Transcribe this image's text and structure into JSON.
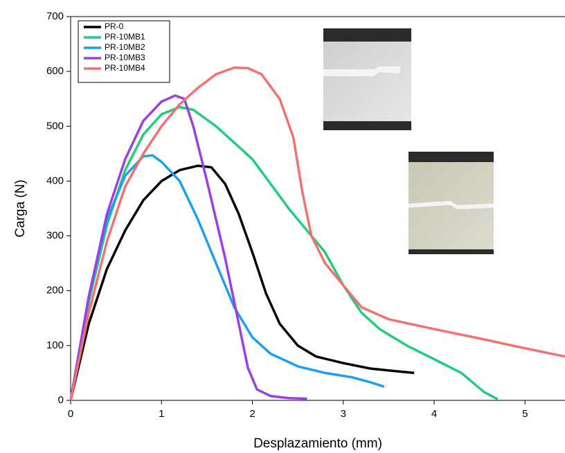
{
  "chart_data": {
    "type": "line",
    "x_label": "Desplazamiento (mm)",
    "y_label": "Carga (N)",
    "xlim": [
      0,
      5.44
    ],
    "ylim": [
      0,
      700
    ],
    "xticks": [
      0,
      1,
      2,
      3,
      4,
      5
    ],
    "yticks": [
      0,
      100,
      200,
      300,
      400,
      500,
      600,
      700
    ],
    "legend": "upper left",
    "series": [
      {
        "name": "PR-0",
        "color": "#000000",
        "x": [
          0,
          0.2,
          0.4,
          0.6,
          0.8,
          1.0,
          1.2,
          1.4,
          1.55,
          1.7,
          1.85,
          2.0,
          2.15,
          2.3,
          2.5,
          2.7,
          3.0,
          3.3,
          3.6,
          3.78
        ],
        "values": [
          0,
          140,
          240,
          310,
          365,
          400,
          420,
          428,
          425,
          395,
          340,
          270,
          195,
          140,
          100,
          80,
          68,
          58,
          53,
          50
        ]
      },
      {
        "name": "PR-10MB1",
        "color": "#22cc7a",
        "x": [
          0,
          0.2,
          0.4,
          0.6,
          0.8,
          1.0,
          1.2,
          1.35,
          1.6,
          1.8,
          2.0,
          2.2,
          2.4,
          2.6,
          2.8,
          3.0,
          3.2,
          3.4,
          3.7,
          4.0,
          4.3,
          4.55,
          4.7
        ],
        "values": [
          0,
          180,
          320,
          420,
          485,
          522,
          535,
          530,
          500,
          470,
          440,
          395,
          350,
          310,
          270,
          210,
          160,
          130,
          100,
          75,
          50,
          15,
          2
        ]
      },
      {
        "name": "PR-10MB2",
        "color": "#1c9ff0",
        "x": [
          0,
          0.2,
          0.4,
          0.6,
          0.8,
          0.9,
          1.0,
          1.2,
          1.4,
          1.6,
          1.8,
          2.0,
          2.2,
          2.5,
          2.8,
          3.1,
          3.3,
          3.45
        ],
        "values": [
          0,
          190,
          330,
          410,
          445,
          447,
          435,
          400,
          330,
          250,
          170,
          115,
          85,
          62,
          50,
          42,
          33,
          25
        ]
      },
      {
        "name": "PR-10MB3",
        "color": "#9a3fe2",
        "x": [
          0,
          0.2,
          0.4,
          0.6,
          0.8,
          1.0,
          1.15,
          1.25,
          1.35,
          1.5,
          1.7,
          1.85,
          1.95,
          2.05,
          2.2,
          2.4,
          2.6
        ],
        "values": [
          0,
          190,
          340,
          440,
          510,
          545,
          556,
          550,
          500,
          400,
          260,
          140,
          60,
          20,
          8,
          4,
          3
        ]
      },
      {
        "name": "PR-10MB4",
        "color": "#f2716e",
        "x": [
          0,
          0.2,
          0.4,
          0.6,
          0.8,
          1.0,
          1.2,
          1.4,
          1.6,
          1.8,
          1.95,
          2.1,
          2.3,
          2.45,
          2.55,
          2.65,
          2.8,
          3.0,
          3.2,
          3.5,
          4.0,
          4.5,
          5.0,
          5.44
        ],
        "values": [
          0,
          160,
          290,
          390,
          450,
          500,
          540,
          570,
          595,
          607,
          606,
          595,
          550,
          480,
          380,
          300,
          250,
          210,
          170,
          148,
          130,
          113,
          95,
          80
        ]
      }
    ]
  }
}
